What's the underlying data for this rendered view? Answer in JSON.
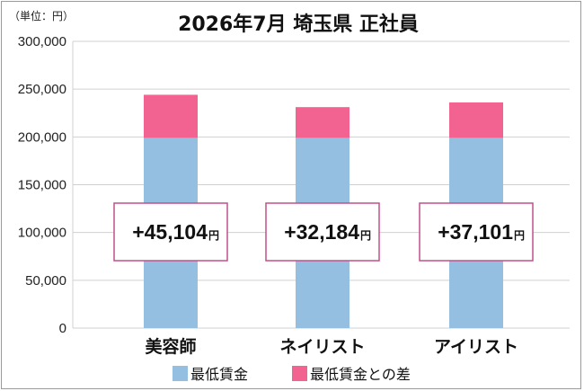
{
  "colors": {
    "base": "#95bfe0",
    "diff": "#f36391",
    "label_border": "#c0508a",
    "grid": "#d0d0d0"
  },
  "chart_data": {
    "type": "bar",
    "stacked": true,
    "title": "2026年7月 埼玉県 正社員",
    "unit_label": "（単位：円）",
    "categories": [
      "美容師",
      "ネイリスト",
      "アイリスト"
    ],
    "series": [
      {
        "name": "最低賃金",
        "values": [
          199000,
          199000,
          199000
        ]
      },
      {
        "name": "最低賃金との差",
        "values": [
          45104,
          32184,
          37101
        ]
      }
    ],
    "data_labels": [
      "+45,104",
      "+32,184",
      "+37,101"
    ],
    "data_label_unit": "円",
    "y_ticks": [
      "0",
      "50,000",
      "100,000",
      "150,000",
      "200,000",
      "250,000",
      "300,000"
    ],
    "ylim": [
      0,
      300000
    ],
    "grid": true,
    "legend_position": "bottom"
  }
}
